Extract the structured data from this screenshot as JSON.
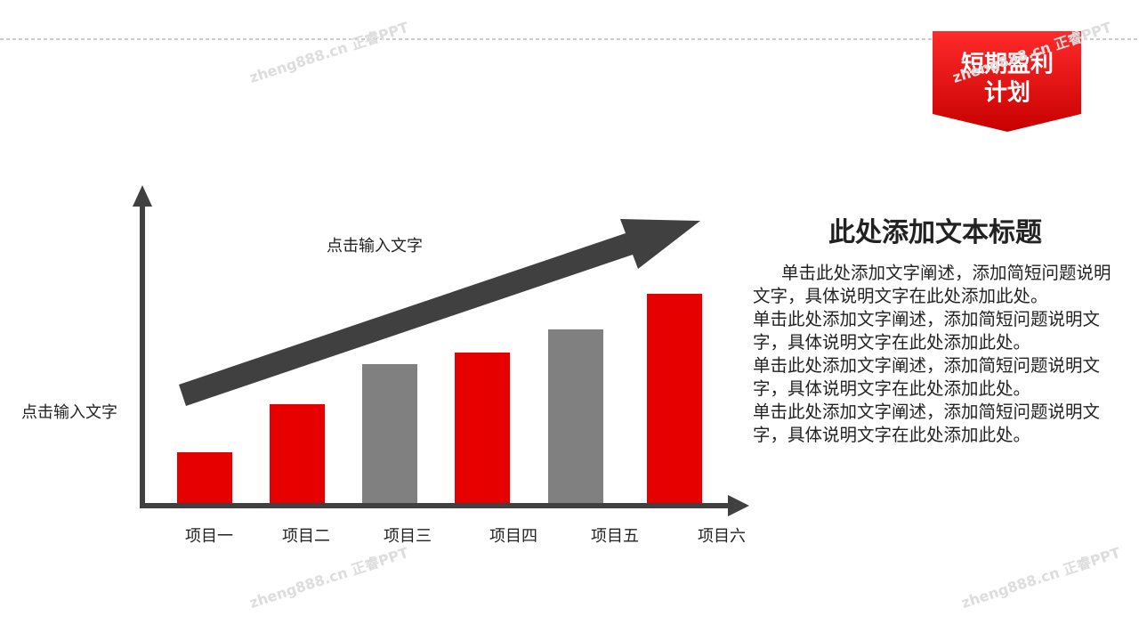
{
  "chart_data": {
    "type": "bar",
    "categories": [
      "项目一",
      "项目二",
      "项目三",
      "项目四",
      "项目五",
      "项目六"
    ],
    "values": [
      57,
      111,
      156,
      169,
      195,
      235
    ],
    "colors": [
      "#e60000",
      "#e60000",
      "#808080",
      "#e60000",
      "#808080",
      "#e60000"
    ],
    "y_label": "点击输入文字",
    "annotation": "点击输入文字"
  },
  "slide": {
    "badge": [
      "短期盈利",
      "计划"
    ],
    "heading": "此处添加文本标题",
    "paragraphs": [
      "单击此处添加文字阐述，添加简短问题说明文字，具体说明文字在此处添加此处。",
      "单击此处添加文字阐述，添加简短问题说明文字，具体说明文字在此处添加此处。",
      "单击此处添加文字阐述，添加简短问题说明文字，具体说明文字在此处添加此处。",
      "单击此处添加文字阐述，添加简短问题说明文字，具体说明文字在此处添加此处。"
    ],
    "watermark": "zheng888.cn 正睿PPT"
  }
}
